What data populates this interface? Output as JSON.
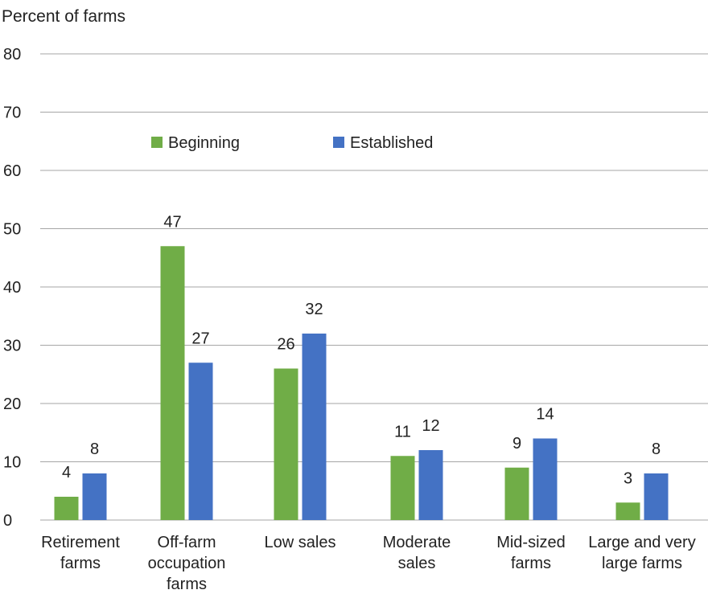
{
  "chart_data": {
    "type": "bar",
    "ylabel": "Percent of farms",
    "ylim": [
      0,
      80
    ],
    "yticks": [
      0,
      10,
      20,
      30,
      40,
      50,
      60,
      70,
      80
    ],
    "grid": true,
    "legend_placement": "top-center",
    "categories": [
      [
        "Retirement",
        "farms"
      ],
      [
        "Off-farm",
        "occupation",
        "farms"
      ],
      [
        "Low sales"
      ],
      [
        "Moderate",
        "sales"
      ],
      [
        "Mid-sized",
        "farms"
      ],
      [
        "Large and very",
        "large farms"
      ]
    ],
    "series": [
      {
        "name": "Beginning",
        "color": "#70ad47",
        "values": [
          4,
          47,
          26,
          11,
          9,
          3
        ]
      },
      {
        "name": "Established",
        "color": "#4472c4",
        "values": [
          8,
          27,
          32,
          12,
          14,
          8
        ]
      }
    ]
  }
}
